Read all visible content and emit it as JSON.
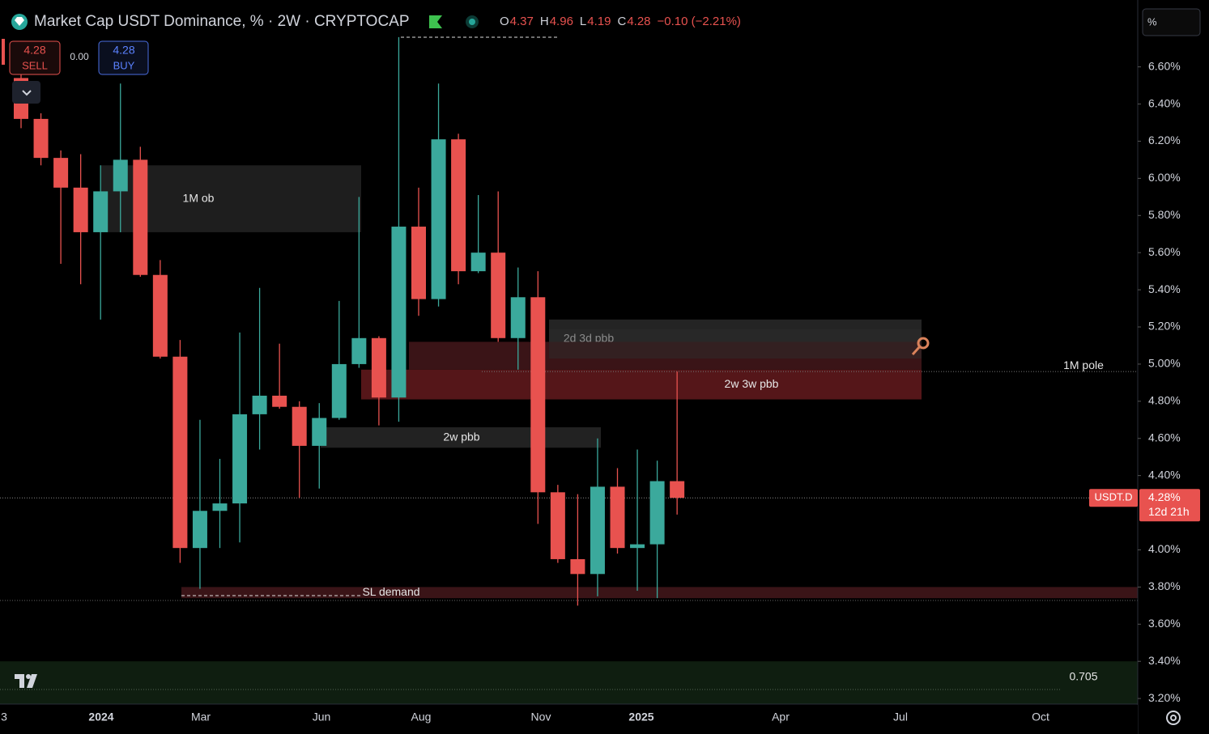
{
  "header": {
    "title": "Market Cap USDT Dominance, % · 2W · CRYPTOCAP",
    "ohlc": [
      {
        "key": "O",
        "value": "4.37"
      },
      {
        "key": "H",
        "value": "4.96"
      },
      {
        "key": "L",
        "value": "4.19"
      },
      {
        "key": "C",
        "value": "4.28"
      }
    ],
    "change": "−0.10 (−2.21%)"
  },
  "trade": {
    "sell_price": "4.28",
    "sell": "SELL",
    "spread": "0.00",
    "buy_price": "4.28",
    "buy": "BUY"
  },
  "scale_button": "%",
  "chart_data": {
    "type": "candlestick",
    "open": [
      6.54,
      6.32,
      6.11,
      5.95,
      5.71,
      5.93,
      6.1,
      5.48,
      5.04,
      4.01,
      4.21,
      4.25,
      4.73,
      4.83,
      4.77,
      4.56,
      4.71,
      5.0,
      5.14,
      4.82,
      5.74,
      5.35,
      6.21,
      5.5,
      5.6,
      5.14,
      5.36,
      4.31,
      3.95,
      3.87,
      4.34,
      4.01,
      4.03,
      4.37
    ],
    "high": [
      6.61,
      6.35,
      6.15,
      6.13,
      6.07,
      6.51,
      6.17,
      5.56,
      5.13,
      4.7,
      4.49,
      5.17,
      5.41,
      5.11,
      4.8,
      4.79,
      5.34,
      5.9,
      5.15,
      6.76,
      5.95,
      6.51,
      6.24,
      5.91,
      5.93,
      5.52,
      5.5,
      4.35,
      4.3,
      4.6,
      4.44,
      4.54,
      4.48,
      4.96
    ],
    "low": [
      6.27,
      6.07,
      5.54,
      5.43,
      5.24,
      5.71,
      5.47,
      5.03,
      3.93,
      3.79,
      4.01,
      4.04,
      4.54,
      4.76,
      4.28,
      4.33,
      4.7,
      4.98,
      4.67,
      4.69,
      5.26,
      5.31,
      5.43,
      5.49,
      5.12,
      4.97,
      4.14,
      3.93,
      3.7,
      3.75,
      3.98,
      3.78,
      3.74,
      4.19
    ],
    "close": [
      6.32,
      6.11,
      5.95,
      5.71,
      5.93,
      6.1,
      5.48,
      5.04,
      4.01,
      4.21,
      4.25,
      4.73,
      4.83,
      4.77,
      4.56,
      4.71,
      5.0,
      5.14,
      4.82,
      5.74,
      5.35,
      6.21,
      5.5,
      5.6,
      5.14,
      5.36,
      4.31,
      3.95,
      3.87,
      4.34,
      4.01,
      4.03,
      4.37,
      4.28
    ],
    "up_color": "#3ba99c",
    "down_color": "#e8524f",
    "ylim": [
      3.17,
      6.96
    ],
    "yticks": [
      {
        "value": 6.6,
        "label": "6.60%"
      },
      {
        "value": 6.4,
        "label": "6.40%"
      },
      {
        "value": 6.2,
        "label": "6.20%"
      },
      {
        "value": 6.0,
        "label": "6.00%"
      },
      {
        "value": 5.8,
        "label": "5.80%"
      },
      {
        "value": 5.6,
        "label": "5.60%"
      },
      {
        "value": 5.4,
        "label": "5.40%"
      },
      {
        "value": 5.2,
        "label": "5.20%"
      },
      {
        "value": 5.0,
        "label": "5.00%"
      },
      {
        "value": 4.8,
        "label": "4.80%"
      },
      {
        "value": 4.6,
        "label": "4.60%"
      },
      {
        "value": 4.4,
        "label": "4.40%"
      },
      {
        "value": 4.0,
        "label": "4.00%"
      },
      {
        "value": 3.8,
        "label": "3.80%"
      },
      {
        "value": 3.6,
        "label": "3.60%"
      },
      {
        "value": 3.4,
        "label": "3.40%"
      },
      {
        "value": 3.2,
        "label": "3.20%"
      }
    ],
    "x_axis_labels": [
      "3",
      "2024",
      "Mar",
      "Jun",
      "Aug",
      "Nov",
      "2025",
      "Apr",
      "Jul",
      "Oct"
    ],
    "zones": [
      {
        "label": "1M ob",
        "top": 6.07,
        "bottom": 5.71,
        "color": "#1e1e1e"
      },
      {
        "label": "2d 3d pbb",
        "top": 5.24,
        "bottom": 5.03,
        "color": "#242424"
      },
      {
        "top": 5.12,
        "bottom": 4.97,
        "color": "#3a1417"
      },
      {
        "label": "2w 3w pbb",
        "top": 4.97,
        "bottom": 4.81,
        "color": "#551619"
      },
      {
        "label": "2w pbb",
        "top": 4.66,
        "bottom": 4.55,
        "color": "#222222"
      },
      {
        "label": "SL demand",
        "top": 3.8,
        "bottom": 3.74,
        "color": "#3a1417"
      },
      {
        "label": "0.705",
        "top": 3.4,
        "bottom": 3.17,
        "color": "#0f1e10"
      }
    ],
    "levels": [
      {
        "label": "1M pole",
        "value": 4.96
      }
    ],
    "last_price": {
      "symbol": "USDT.D",
      "value": 4.28,
      "label": "4.28%",
      "countdown": "12d 21h"
    }
  }
}
